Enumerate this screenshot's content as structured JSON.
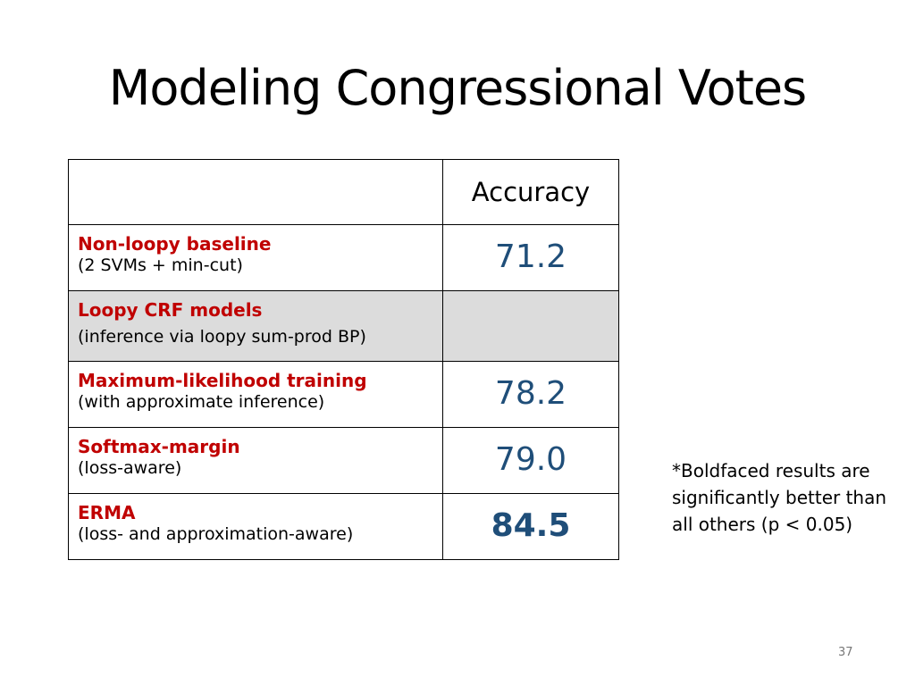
{
  "slide": {
    "title": "Modeling Congressional Votes",
    "page_number": "37"
  },
  "table": {
    "header": {
      "model": "",
      "accuracy": "Accuracy"
    },
    "rows": [
      {
        "name": "Non-loopy baseline",
        "description": "(2 SVMs + min-cut)",
        "accuracy": "71.2",
        "shaded": false,
        "bold": false
      },
      {
        "name": "Loopy CRF models",
        "description": "(inference via loopy sum-prod BP)",
        "accuracy": "",
        "shaded": true,
        "bold": false
      },
      {
        "name": "Maximum-likelihood training",
        "description": "(with approximate inference)",
        "accuracy": "78.2",
        "shaded": false,
        "bold": false
      },
      {
        "name": "Softmax-margin",
        "description": "(loss-aware)",
        "accuracy": "79.0",
        "shaded": false,
        "bold": false
      },
      {
        "name": "ERMA",
        "description": "(loss- and approximation-aware)",
        "accuracy": "84.5",
        "shaded": false,
        "bold": true
      }
    ]
  },
  "footnote": "*Boldfaced results are significantly better than all others (p < 0.05)",
  "colors": {
    "model_name": "#c00000",
    "accuracy_value": "#1f4e79",
    "shaded_row": "#dcdcdc"
  }
}
